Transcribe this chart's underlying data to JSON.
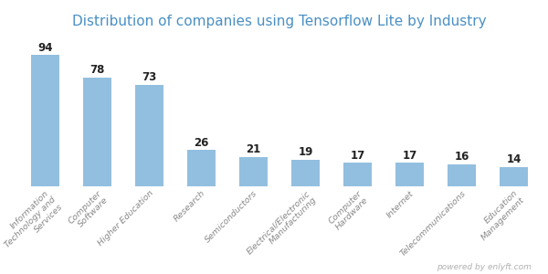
{
  "title": "Distribution of companies using Tensorflow Lite by Industry",
  "title_color": "#4a90c4",
  "categories": [
    "Information\nTechnology and\nServices",
    "Computer\nSoftware",
    "Higher Education",
    "Research",
    "Semiconductors",
    "Electrical/Electronic\nManufacturing",
    "Computer\nHardware",
    "Internet",
    "Telecommunications",
    "Education\nManagement"
  ],
  "values": [
    94,
    78,
    73,
    26,
    21,
    19,
    17,
    17,
    16,
    14
  ],
  "bar_color": "#92bfdf",
  "background_color": "#ffffff",
  "ylim": [
    0,
    110
  ],
  "value_fontsize": 8.5,
  "label_fontsize": 6.8,
  "title_fontsize": 11,
  "watermark": "powered by enlyft.com",
  "watermark_color": "#b0b0b0"
}
